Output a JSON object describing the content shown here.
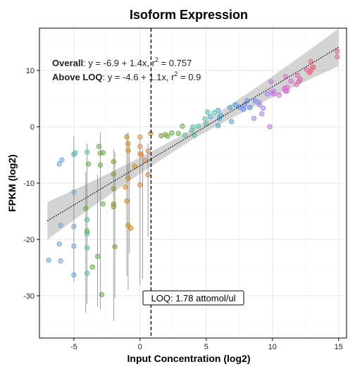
{
  "chart_data": {
    "type": "scatter",
    "title": "Isoform Expression",
    "xlabel": "Input Concentration (log2)",
    "ylabel": "FPKM (log2)",
    "xlim": [
      -7.6,
      15.6
    ],
    "ylim": [
      -37.5,
      17.5
    ],
    "x_ticks": [
      -5,
      0,
      5,
      10,
      15
    ],
    "y_ticks": [
      10,
      0,
      -10,
      -20,
      -30
    ],
    "x_tick_labels": [
      "-5",
      "0",
      "5",
      "10",
      "15"
    ],
    "y_tick_labels": [
      "10",
      "0",
      "-10",
      "-20",
      "-30"
    ],
    "grid": true,
    "annotations": {
      "overall_label": "Overall",
      "overall_eq": ": y = -6.9 + 1.4x,  r",
      "overall_sup": "2",
      "overall_val": " = 0.757",
      "above_label": "Above LOQ",
      "above_eq": ": y = -4.6 + 1.1x,  r",
      "above_sup": "2",
      "above_val": " = 0.9"
    },
    "loq": {
      "x": 0.83,
      "label": "LOQ: 1.78 attomol/ul"
    },
    "fit": {
      "intercept": -6.9,
      "slope": 1.4,
      "x_range": [
        -7,
        15
      ]
    },
    "points": [
      {
        "x": -6.9,
        "y": -23.7,
        "color": "#6fa8dc"
      },
      {
        "x": -6.1,
        "y": -6.6,
        "color": "#6fa8dc"
      },
      {
        "x": -5.9,
        "y": -5.9,
        "color": "#6fa8dc"
      },
      {
        "x": -6.0,
        "y": -17.5,
        "color": "#6fa8dc"
      },
      {
        "x": -6.1,
        "y": -20.8,
        "color": "#6fa8dc"
      },
      {
        "x": -6.0,
        "y": -23.8,
        "color": "#6fa8dc"
      },
      {
        "x": -5.0,
        "y": -11.6,
        "color": "#6fa8dc"
      },
      {
        "x": -5.0,
        "y": -17.7,
        "color": "#6fa8dc"
      },
      {
        "x": -5.0,
        "y": -21.2,
        "color": "#6fa8dc"
      },
      {
        "x": -5.0,
        "y": -26.3,
        "color": "#6fa8dc"
      },
      {
        "x": -5.0,
        "y": -4.9,
        "color": "#6fa8dc"
      },
      {
        "x": -4.9,
        "y": -4.6,
        "color": "#5fbfa8"
      },
      {
        "x": -4.0,
        "y": -4.5,
        "color": "#5fbfa8"
      },
      {
        "x": -4.0,
        "y": -16.5,
        "color": "#5fbfa8"
      },
      {
        "x": -4.0,
        "y": -19.0,
        "color": "#5fbfa8"
      },
      {
        "x": -4.0,
        "y": -21.5,
        "color": "#5fbfa8"
      },
      {
        "x": -4.0,
        "y": -26.0,
        "color": "#5fbfa8"
      },
      {
        "x": -3.9,
        "y": -6.6,
        "color": "#6ab04c"
      },
      {
        "x": -4.1,
        "y": -14.5,
        "color": "#6ab04c"
      },
      {
        "x": -4.0,
        "y": -18.5,
        "color": "#6ab04c"
      },
      {
        "x": -3.6,
        "y": -24.9,
        "color": "#6ab04c"
      },
      {
        "x": -3.1,
        "y": -3.5,
        "color": "#6ab04c"
      },
      {
        "x": -3.0,
        "y": -4.7,
        "color": "#6ab04c"
      },
      {
        "x": -2.8,
        "y": -4.6,
        "color": "#6ab04c"
      },
      {
        "x": -3.0,
        "y": -6.8,
        "color": "#6ab04c"
      },
      {
        "x": -2.8,
        "y": -13.7,
        "color": "#6ab04c"
      },
      {
        "x": -3.2,
        "y": -23.0,
        "color": "#6ab04c"
      },
      {
        "x": -2.9,
        "y": -29.8,
        "color": "#6ab04c"
      },
      {
        "x": -2.0,
        "y": -6.2,
        "color": "#8c9b3c"
      },
      {
        "x": -2.0,
        "y": -8.4,
        "color": "#8c9b3c"
      },
      {
        "x": -2.0,
        "y": -11.0,
        "color": "#8c9b3c"
      },
      {
        "x": -2.0,
        "y": -13.7,
        "color": "#8c9b3c"
      },
      {
        "x": -2.0,
        "y": -14.2,
        "color": "#8c9b3c"
      },
      {
        "x": -1.9,
        "y": -21.3,
        "color": "#8c9b3c"
      },
      {
        "x": -1.0,
        "y": -1.8,
        "color": "#c8922a"
      },
      {
        "x": -0.9,
        "y": -3.0,
        "color": "#c8922a"
      },
      {
        "x": -0.9,
        "y": -4.2,
        "color": "#c8922a"
      },
      {
        "x": -0.9,
        "y": -9.1,
        "color": "#c8922a"
      },
      {
        "x": -1.1,
        "y": -10.7,
        "color": "#c8922a"
      },
      {
        "x": -0.9,
        "y": -17.5,
        "color": "#c8922a"
      },
      {
        "x": -0.7,
        "y": -18.0,
        "color": "#c8922a"
      },
      {
        "x": -1.0,
        "y": -13.2,
        "color": "#c8922a"
      },
      {
        "x": -0.4,
        "y": -7.0,
        "color": "#c8922a"
      },
      {
        "x": 0.0,
        "y": -1.8,
        "color": "#e48a4a"
      },
      {
        "x": 0.0,
        "y": -3.5,
        "color": "#e48a4a"
      },
      {
        "x": 0.0,
        "y": -4.8,
        "color": "#e48a4a"
      },
      {
        "x": 0.1,
        "y": -5.0,
        "color": "#e48a4a"
      },
      {
        "x": 0.0,
        "y": -10.3,
        "color": "#e48a4a"
      },
      {
        "x": 0.6,
        "y": -4.3,
        "color": "#e48a4a"
      },
      {
        "x": 0.6,
        "y": -8.5,
        "color": "#e48a4a"
      },
      {
        "x": 0.4,
        "y": -6.0,
        "color": "#e48a4a"
      },
      {
        "x": 0.8,
        "y": -1.2,
        "color": "#c8922a"
      },
      {
        "x": 1.6,
        "y": -1.6,
        "color": "#8c9b3c"
      },
      {
        "x": 1.9,
        "y": -1.4,
        "color": "#8c9b3c"
      },
      {
        "x": 2.1,
        "y": -1.7,
        "color": "#6ab04c"
      },
      {
        "x": 2.4,
        "y": -1.1,
        "color": "#6ab04c"
      },
      {
        "x": 2.9,
        "y": -1.2,
        "color": "#6ab04c"
      },
      {
        "x": 3.2,
        "y": 0.1,
        "color": "#6ab04c"
      },
      {
        "x": 3.4,
        "y": -1.5,
        "color": "#5fbfa8"
      },
      {
        "x": 3.9,
        "y": -0.6,
        "color": "#5fbfa8"
      },
      {
        "x": 4.0,
        "y": 0.0,
        "color": "#5fbfa8"
      },
      {
        "x": 4.1,
        "y": -1.5,
        "color": "#5fbfa8"
      },
      {
        "x": 4.4,
        "y": 0.1,
        "color": "#5fbfa8"
      },
      {
        "x": 4.9,
        "y": 1.4,
        "color": "#5fbfa8"
      },
      {
        "x": 5.1,
        "y": 2.6,
        "color": "#5fbfa8"
      },
      {
        "x": 5.0,
        "y": 0.5,
        "color": "#5fbfa8"
      },
      {
        "x": 5.6,
        "y": 2.5,
        "color": "#5fbfa8"
      },
      {
        "x": 5.3,
        "y": 1.8,
        "color": "#4fa8d8"
      },
      {
        "x": 5.9,
        "y": 2.9,
        "color": "#4fa8d8"
      },
      {
        "x": 6.0,
        "y": 1.5,
        "color": "#4fa8d8"
      },
      {
        "x": 6.1,
        "y": 2.0,
        "color": "#4fa8d8"
      },
      {
        "x": 5.9,
        "y": 0.2,
        "color": "#4fa8d8"
      },
      {
        "x": 6.8,
        "y": 3.4,
        "color": "#4fa8d8"
      },
      {
        "x": 6.9,
        "y": 0.9,
        "color": "#4fa8d8"
      },
      {
        "x": 7.2,
        "y": 3.9,
        "color": "#4fa8d8"
      },
      {
        "x": 7.5,
        "y": 3.5,
        "color": "#6a8cf0"
      },
      {
        "x": 7.8,
        "y": 3.1,
        "color": "#6a8cf0"
      },
      {
        "x": 7.9,
        "y": 3.9,
        "color": "#6a8cf0"
      },
      {
        "x": 8.3,
        "y": 3.4,
        "color": "#6a8cf0"
      },
      {
        "x": 8.1,
        "y": 4.6,
        "color": "#6a8cf0"
      },
      {
        "x": 8.7,
        "y": 4.6,
        "color": "#6a8cf0"
      },
      {
        "x": 9.0,
        "y": 4.3,
        "color": "#a889e6"
      },
      {
        "x": 9.0,
        "y": 3.9,
        "color": "#a889e6"
      },
      {
        "x": 9.3,
        "y": 3.3,
        "color": "#a889e6"
      },
      {
        "x": 9.2,
        "y": 2.3,
        "color": "#a889e6"
      },
      {
        "x": 8.6,
        "y": 1.5,
        "color": "#a889e6"
      },
      {
        "x": 9.6,
        "y": 5.8,
        "color": "#a889e6"
      },
      {
        "x": 9.9,
        "y": 6.1,
        "color": "#c27be0"
      },
      {
        "x": 9.9,
        "y": 8.0,
        "color": "#c27be0"
      },
      {
        "x": 9.8,
        "y": 0.0,
        "color": "#c27be0"
      },
      {
        "x": 10.1,
        "y": 6.3,
        "color": "#c27be0"
      },
      {
        "x": 10.1,
        "y": 5.8,
        "color": "#c27be0"
      },
      {
        "x": 10.5,
        "y": 5.6,
        "color": "#d86fd0"
      },
      {
        "x": 10.9,
        "y": 6.8,
        "color": "#d86fd0"
      },
      {
        "x": 11.0,
        "y": 6.3,
        "color": "#d86fd0"
      },
      {
        "x": 11.1,
        "y": 7.0,
        "color": "#d86fd0"
      },
      {
        "x": 11.0,
        "y": 8.9,
        "color": "#d86fd0"
      },
      {
        "x": 11.4,
        "y": 8.1,
        "color": "#d86fd0"
      },
      {
        "x": 11.1,
        "y": 6.4,
        "color": "#d86fd0"
      },
      {
        "x": 11.8,
        "y": 7.5,
        "color": "#e06aa8"
      },
      {
        "x": 12.0,
        "y": 8.0,
        "color": "#e06aa8"
      },
      {
        "x": 11.9,
        "y": 9.1,
        "color": "#e06aa8"
      },
      {
        "x": 12.1,
        "y": 8.4,
        "color": "#e06aa8"
      },
      {
        "x": 12.6,
        "y": 10.1,
        "color": "#e06aa8"
      },
      {
        "x": 12.9,
        "y": 9.9,
        "color": "#e86f80"
      },
      {
        "x": 13.1,
        "y": 10.6,
        "color": "#e86f80"
      },
      {
        "x": 12.9,
        "y": 11.6,
        "color": "#e86f80"
      },
      {
        "x": 13.0,
        "y": 10.5,
        "color": "#e86f80"
      },
      {
        "x": 12.8,
        "y": 9.6,
        "color": "#e86f80"
      },
      {
        "x": 14.9,
        "y": 12.4,
        "color": "#e86f80"
      },
      {
        "x": 14.9,
        "y": 13.4,
        "color": "#e86f80"
      }
    ],
    "error_bars": [
      {
        "x": -5.0,
        "y0": -1.7,
        "y1": -27.5
      },
      {
        "x": -4.0,
        "y0": -3.0,
        "y1": -31.5
      },
      {
        "x": -3.0,
        "y0": -1.0,
        "y1": -32.5
      },
      {
        "x": -2.0,
        "y0": -4.0,
        "y1": -34.5
      },
      {
        "x": -1.9,
        "y0": -4.5,
        "y1": -30.5
      },
      {
        "x": -1.0,
        "y0": -1.2,
        "y1": -26.5
      },
      {
        "x": -0.8,
        "y0": -3.2,
        "y1": -22.5
      },
      {
        "x": -0.9,
        "y0": -0.9,
        "y1": -29.0
      },
      {
        "x": 0.0,
        "y0": -2.0,
        "y1": -28.0
      },
      {
        "x": 0.2,
        "y0": -4.0,
        "y1": -27.0
      },
      {
        "x": 0.6,
        "y0": -3.0,
        "y1": -19.5
      },
      {
        "x": -3.2,
        "y0": -8.5,
        "y1": -32.0
      },
      {
        "x": -4.1,
        "y0": -8.0,
        "y1": -33.0
      }
    ]
  }
}
